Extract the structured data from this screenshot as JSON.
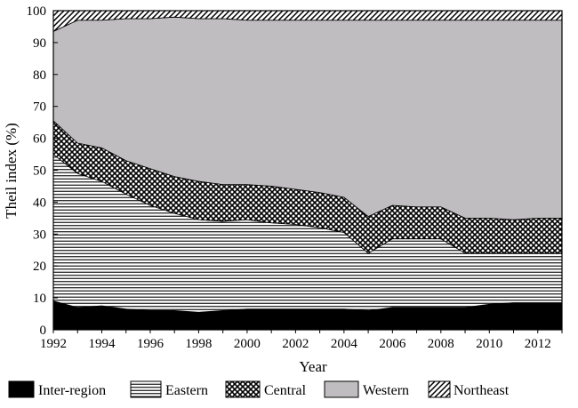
{
  "chart_data": {
    "type": "area",
    "stacked": true,
    "xlabel": "Year",
    "ylabel": "Theil index (%)",
    "xlim": [
      1992,
      2013
    ],
    "ylim": [
      0,
      100
    ],
    "x_ticks": [
      "1992",
      "1994",
      "1996",
      "1998",
      "2000",
      "2002",
      "2004",
      "2006",
      "2008",
      "2010",
      "2012"
    ],
    "y_ticks": [
      "0",
      "10",
      "20",
      "30",
      "40",
      "50",
      "60",
      "70",
      "80",
      "90",
      "100"
    ],
    "legend_position": "bottom",
    "x": [
      1992,
      1993,
      1994,
      1995,
      1996,
      1997,
      1998,
      1999,
      2000,
      2001,
      2002,
      2003,
      2004,
      2005,
      2006,
      2007,
      2008,
      2009,
      2010,
      2011,
      2012,
      2013
    ],
    "series": [
      {
        "name": "Inter-region",
        "fill": "solid",
        "values": [
          9,
          7,
          7.5,
          6.5,
          6,
          6,
          5.5,
          6,
          6.5,
          6.5,
          6.5,
          6.5,
          6.5,
          6,
          7,
          7,
          7,
          7,
          8,
          8.5,
          8.5,
          8.5
        ]
      },
      {
        "name": "Eastern",
        "fill": "horizontal-lines",
        "values": [
          46,
          42,
          39,
          36,
          33,
          30.5,
          29,
          28,
          28,
          27,
          26.5,
          25.5,
          24,
          18,
          21.5,
          21.5,
          21.5,
          17,
          16,
          15.5,
          15.5,
          15.5
        ]
      },
      {
        "name": "Central",
        "fill": "crosshatch",
        "values": [
          10.5,
          9.5,
          10.5,
          10.5,
          11.5,
          11.5,
          12,
          11.5,
          11,
          11.5,
          11,
          11,
          11,
          11.5,
          10.5,
          10,
          10,
          11,
          11,
          10.5,
          11,
          11
        ]
      },
      {
        "name": "Western",
        "fill": "light-gray",
        "values": [
          28,
          38.5,
          40,
          44.5,
          47,
          50,
          51,
          52,
          51.5,
          52,
          53,
          54,
          55.5,
          61.5,
          58,
          58.5,
          58.5,
          62,
          62,
          62.5,
          62,
          62
        ]
      },
      {
        "name": "Northeast",
        "fill": "diagonal-lines",
        "values": [
          6.5,
          3,
          3,
          2.5,
          2.5,
          2,
          2.5,
          2.5,
          3,
          3,
          3,
          3,
          3,
          3,
          3,
          3,
          3,
          3,
          3,
          3,
          3,
          3
        ]
      }
    ]
  }
}
